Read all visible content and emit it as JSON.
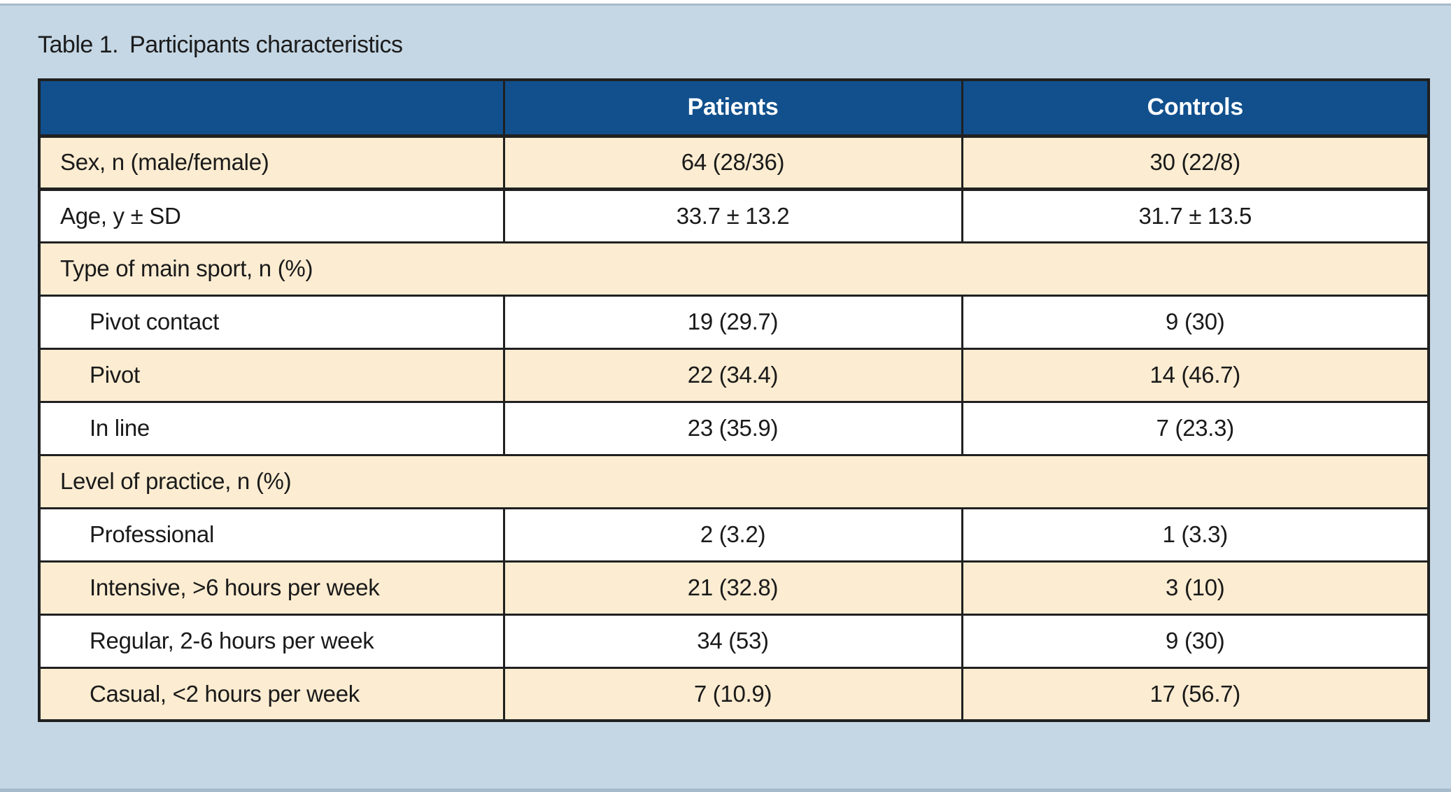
{
  "page": {
    "colors": {
      "page_bg": "#c5d7e5",
      "top_strip": "#ffffff",
      "edge_line": "#a6bbcb"
    }
  },
  "title": {
    "label": "Table 1.",
    "text": "Participants characteristics"
  },
  "table": {
    "colors": {
      "header_bg": "#11508d",
      "header_text": "#ffffff",
      "stripe_bg": "#fcecd1",
      "row_bg": "#ffffff",
      "border": "#202020",
      "text": "#1a1a1a"
    },
    "columns": [
      "",
      "Patients",
      "Controls"
    ],
    "rows": [
      {
        "label": "Sex, n (male/female)",
        "patients": "64 (28/36)",
        "controls": "30 (22/8)",
        "section": false,
        "indent": false
      },
      {
        "label": "Age, y ± SD",
        "patients": "33.7 ± 13.2",
        "controls": "31.7 ± 13.5",
        "section": false,
        "indent": false
      },
      {
        "label": "Type of main sport, n (%)",
        "section": true,
        "indent": false
      },
      {
        "label": "Pivot contact",
        "patients": "19 (29.7)",
        "controls": "9 (30)",
        "section": false,
        "indent": true
      },
      {
        "label": "Pivot",
        "patients": "22 (34.4)",
        "controls": "14 (46.7)",
        "section": false,
        "indent": true
      },
      {
        "label": "In line",
        "patients": "23 (35.9)",
        "controls": "7 (23.3)",
        "section": false,
        "indent": true
      },
      {
        "label": "Level of practice, n (%)",
        "section": true,
        "indent": false
      },
      {
        "label": "Professional",
        "patients": "2 (3.2)",
        "controls": "1 (3.3)",
        "section": false,
        "indent": true
      },
      {
        "label": "Intensive, >6 hours per week",
        "patients": "21 (32.8)",
        "controls": "3 (10)",
        "section": false,
        "indent": true
      },
      {
        "label": "Regular, 2-6 hours per week",
        "patients": "34 (53)",
        "controls": "9 (30)",
        "section": false,
        "indent": true
      },
      {
        "label": "Casual, <2 hours per week",
        "patients": "7 (10.9)",
        "controls": "17 (56.7)",
        "section": false,
        "indent": true
      }
    ]
  }
}
